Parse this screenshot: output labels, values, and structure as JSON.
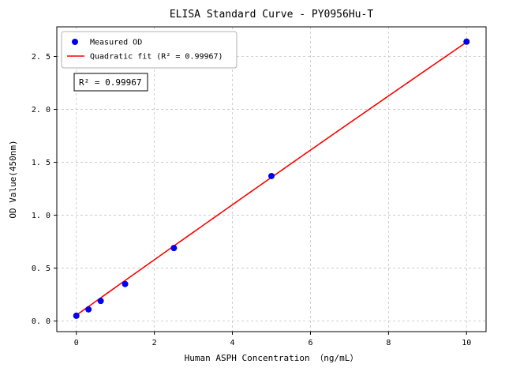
{
  "chart_data": {
    "type": "scatter",
    "title": "ELISA Standard Curve - PY0956Hu-T",
    "xlabel": "Human ASPH Concentration （ng/mL）",
    "ylabel": "OD Value(450nm)",
    "xlim": [
      -0.5,
      10.5
    ],
    "ylim": [
      -0.1,
      2.78
    ],
    "xticks": [
      0,
      2,
      4,
      6,
      8,
      10
    ],
    "xtick_labels": [
      "0",
      "2",
      "4",
      "6",
      "8",
      "10"
    ],
    "yticks": [
      0.0,
      0.5,
      1.0,
      1.5,
      2.0,
      2.5
    ],
    "ytick_labels": [
      "0. 0",
      "0. 5",
      "1. 0",
      "1. 5",
      "2. 0",
      "2. 5"
    ],
    "grid": {
      "visible": true,
      "style": "dashed",
      "color": "#c4c4c4"
    },
    "legend": {
      "position": "upper-left"
    },
    "annotation": "R² = 0.99967",
    "series": [
      {
        "name": "Measured OD",
        "type": "scatter",
        "color": "#0000ee",
        "marker": "circle",
        "x": [
          0,
          0.312,
          0.625,
          1.25,
          2.5,
          5,
          10
        ],
        "y": [
          0.05,
          0.11,
          0.19,
          0.35,
          0.69,
          1.37,
          2.64
        ]
      },
      {
        "name": "Quadratic fit (R² = 0.99967)",
        "type": "line",
        "color": "#ff0000",
        "fit": "quadratic",
        "coefficients": [
          -0.0005,
          0.263,
          0.055
        ],
        "x_range": [
          0,
          10
        ],
        "r_squared": 0.99967
      }
    ]
  }
}
